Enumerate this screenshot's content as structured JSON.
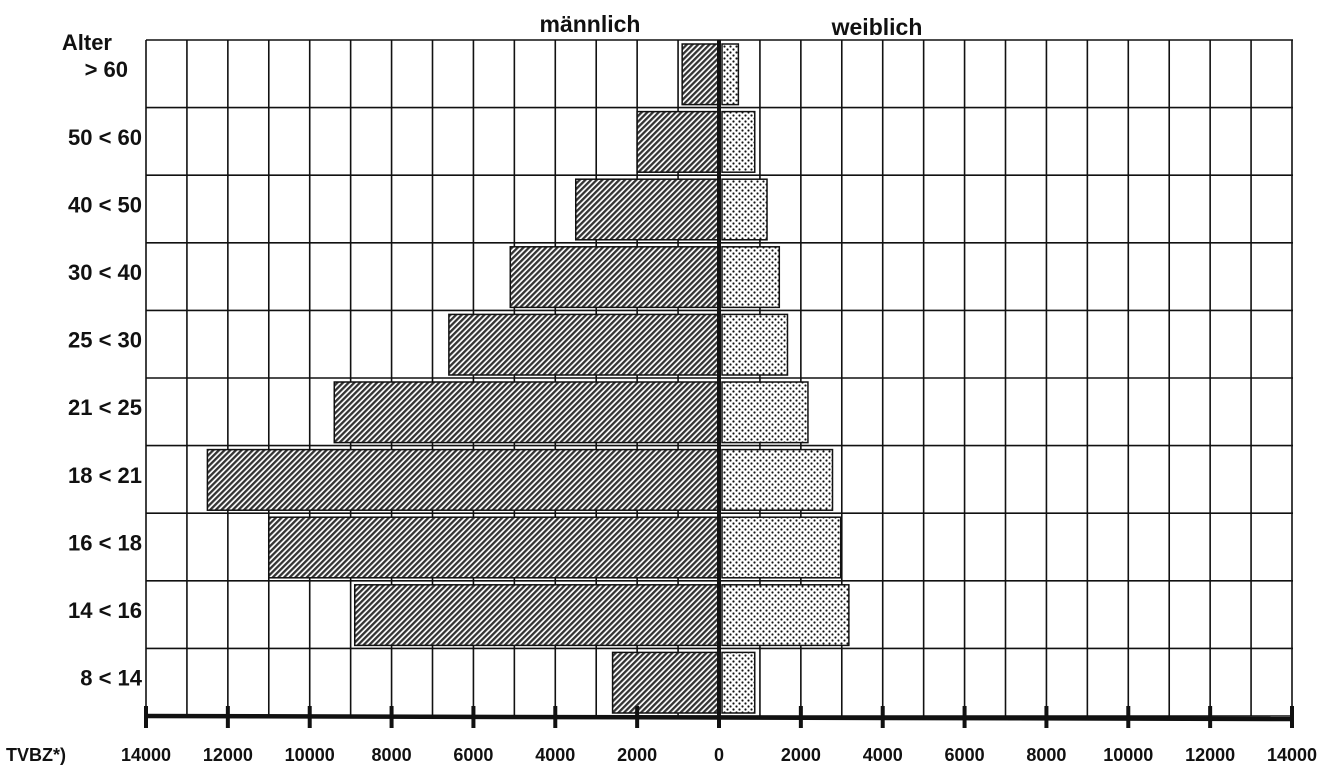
{
  "chart_data": {
    "type": "bar",
    "orientation": "horizontal",
    "layout": "population-pyramid",
    "title": "",
    "header_left": "männlich",
    "header_right": "weiblich",
    "age_header": "Alter",
    "xlabel": "TVBZ*)",
    "xlim": [
      -14000,
      14000
    ],
    "xticks": [
      14000,
      12000,
      10000,
      8000,
      6000,
      4000,
      2000,
      0,
      2000,
      4000,
      6000,
      8000,
      10000,
      12000,
      14000
    ],
    "categories": [
      "> 60",
      "50 < 60",
      "40 < 50",
      "30 < 40",
      "25 < 30",
      "21 < 25",
      "18 < 21",
      "16 < 18",
      "14 < 16",
      "8 < 14"
    ],
    "series": [
      {
        "name": "männlich",
        "values": [
          900,
          2000,
          3500,
          5100,
          6600,
          9400,
          12500,
          11000,
          8900,
          2600
        ]
      },
      {
        "name": "weiblich",
        "values": [
          400,
          800,
          1100,
          1400,
          1600,
          2100,
          2700,
          2900,
          3100,
          800
        ]
      }
    ],
    "grid": true
  },
  "colors": {
    "male_fill": "#3a3a3a",
    "female_fill": "#ffffff",
    "grid": "#111111"
  }
}
